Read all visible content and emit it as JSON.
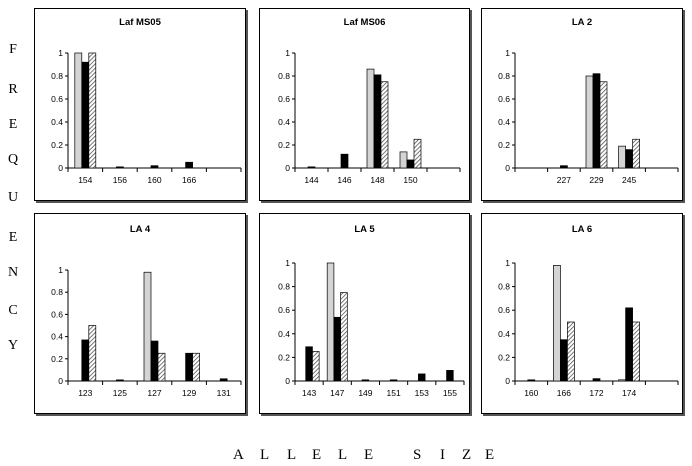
{
  "figure": {
    "y_axis_title_letters": [
      "F",
      "R",
      "E",
      "Q",
      "U",
      "E",
      "N",
      "C",
      "Y"
    ],
    "x_axis_title_letters": [
      "A",
      "L",
      "L",
      "E",
      "L",
      "E",
      "S",
      "I",
      "Z",
      "E"
    ]
  },
  "chart_data": [
    {
      "type": "bar",
      "title": "Laf MS05",
      "ylim": [
        0,
        1
      ],
      "yticks": [
        "0",
        "0.2",
        "0.4",
        "0.6",
        "0.8",
        "1"
      ],
      "categories": [
        "154",
        "156",
        "160",
        "166",
        ""
      ],
      "series": [
        {
          "style": "light-gray",
          "values": [
            1.0,
            0.0,
            0.0,
            0.0,
            0.0
          ]
        },
        {
          "style": "black",
          "values": [
            0.92,
            0.01,
            0.02,
            0.05,
            0.0
          ]
        },
        {
          "style": "hatched",
          "values": [
            1.0,
            0.0,
            0.0,
            0.0,
            0.0
          ]
        }
      ]
    },
    {
      "type": "bar",
      "title": "Laf MS06",
      "ylim": [
        0,
        1
      ],
      "yticks": [
        "0",
        "0.2",
        "0.4",
        "0.6",
        "0.8",
        "1"
      ],
      "categories": [
        "144",
        "146",
        "148",
        "150",
        ""
      ],
      "series": [
        {
          "style": "light-gray",
          "values": [
            0.0,
            0.0,
            0.86,
            0.14,
            0.0
          ]
        },
        {
          "style": "black",
          "values": [
            0.01,
            0.12,
            0.81,
            0.07,
            0.0
          ]
        },
        {
          "style": "hatched",
          "values": [
            0.0,
            0.0,
            0.75,
            0.25,
            0.0
          ]
        }
      ]
    },
    {
      "type": "bar",
      "title": "LA 2",
      "ylim": [
        0,
        1
      ],
      "yticks": [
        "0",
        "0.2",
        "0.4",
        "0.6",
        "0.8",
        "1"
      ],
      "categories": [
        "",
        "227",
        "229",
        "245",
        ""
      ],
      "series": [
        {
          "style": "light-gray",
          "values": [
            0.0,
            0.0,
            0.8,
            0.19,
            0.0
          ]
        },
        {
          "style": "black",
          "values": [
            0.0,
            0.02,
            0.82,
            0.16,
            0.0
          ]
        },
        {
          "style": "hatched",
          "values": [
            0.0,
            0.0,
            0.75,
            0.25,
            0.0
          ]
        }
      ]
    },
    {
      "type": "bar",
      "title": "LA 4",
      "ylim": [
        0,
        1
      ],
      "yticks": [
        "0",
        "0.2",
        "0.4",
        "0.6",
        "0.8",
        "1"
      ],
      "categories": [
        "123",
        "125",
        "127",
        "129",
        "131"
      ],
      "series": [
        {
          "style": "light-gray",
          "values": [
            0.0,
            0.0,
            0.98,
            0.0,
            0.0
          ]
        },
        {
          "style": "black",
          "values": [
            0.37,
            0.01,
            0.36,
            0.25,
            0.02
          ]
        },
        {
          "style": "hatched",
          "values": [
            0.5,
            0.0,
            0.25,
            0.25,
            0.0
          ]
        }
      ]
    },
    {
      "type": "bar",
      "title": "LA 5",
      "ylim": [
        0,
        1
      ],
      "yticks": [
        "0",
        "0.2",
        "0.4",
        "0.6",
        "0.8",
        "1"
      ],
      "categories": [
        "143",
        "147",
        "149",
        "151",
        "153",
        "155"
      ],
      "series": [
        {
          "style": "light-gray",
          "values": [
            0.0,
            1.0,
            0.0,
            0.0,
            0.0,
            0.0
          ]
        },
        {
          "style": "black",
          "values": [
            0.29,
            0.54,
            0.01,
            0.01,
            0.06,
            0.09
          ]
        },
        {
          "style": "hatched",
          "values": [
            0.25,
            0.75,
            0.0,
            0.0,
            0.0,
            0.0
          ]
        }
      ]
    },
    {
      "type": "bar",
      "title": "LA 6",
      "ylim": [
        0,
        1
      ],
      "yticks": [
        "0",
        "0.2",
        "0.4",
        "0.6",
        "0.8",
        "1"
      ],
      "categories": [
        "160",
        "166",
        "172",
        "174",
        ""
      ],
      "series": [
        {
          "style": "light-gray",
          "values": [
            0.0,
            0.98,
            0.0,
            0.01,
            0.0
          ]
        },
        {
          "style": "black",
          "values": [
            0.01,
            0.35,
            0.02,
            0.62,
            0.0
          ]
        },
        {
          "style": "hatched",
          "values": [
            0.0,
            0.5,
            0.0,
            0.5,
            0.0
          ]
        }
      ]
    }
  ],
  "colors": {
    "light_gray": "#d4d4d4",
    "black": "#000000",
    "hatch": "#555555"
  }
}
